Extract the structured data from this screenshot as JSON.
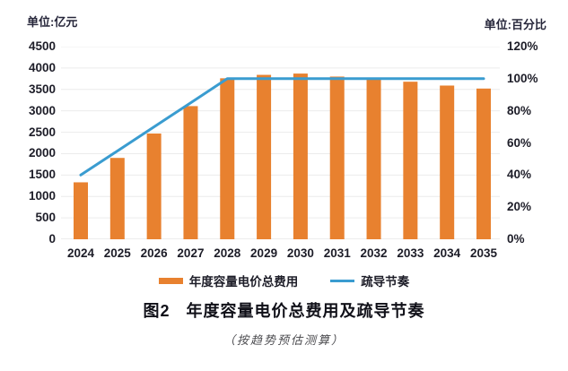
{
  "units": {
    "left": "单位:亿元",
    "right": "单位:百分比"
  },
  "figure": {
    "number": "图2",
    "title": "年度容量电价总费用及疏导节奏",
    "subtitle": "（按趋势预估测算）"
  },
  "colors": {
    "bar": "#E8812F",
    "line": "#3A9CD0",
    "grid": "#ECECEC",
    "baseline": "#D9D9D9",
    "tick_text": "#1D1D28"
  },
  "chart_data": {
    "type": "bar",
    "title": "图2 年度容量电价总费用及疏导节奏",
    "subtitle": "（按趋势预估测算）",
    "categories": [
      "2024",
      "2025",
      "2026",
      "2027",
      "2028",
      "2029",
      "2030",
      "2031",
      "2032",
      "2033",
      "2034",
      "2035"
    ],
    "series": [
      {
        "name": "年度容量电价总费用",
        "type": "bar",
        "axis": "left",
        "color": "#E8812F",
        "values": [
          1330,
          1900,
          2470,
          3110,
          3760,
          3840,
          3870,
          3800,
          3750,
          3680,
          3590,
          3520
        ]
      },
      {
        "name": "疏导节奏",
        "type": "line",
        "axis": "right",
        "color": "#3A9CD0",
        "values": [
          40,
          55,
          70,
          85,
          100,
          100,
          100,
          100,
          100,
          100,
          100,
          100
        ]
      }
    ],
    "left_axis": {
      "label": "单位:亿元",
      "min": 0,
      "max": 4500,
      "step": 500,
      "ticks": [
        "0",
        "500",
        "1000",
        "1500",
        "2000",
        "2500",
        "3000",
        "3500",
        "4000",
        "4500"
      ]
    },
    "right_axis": {
      "label": "单位:百分比",
      "min": 0,
      "max": 120,
      "step": 20,
      "ticks": [
        "0%",
        "20%",
        "40%",
        "60%",
        "80%",
        "100%",
        "120%"
      ]
    },
    "grid": true,
    "legend_position": "bottom"
  }
}
